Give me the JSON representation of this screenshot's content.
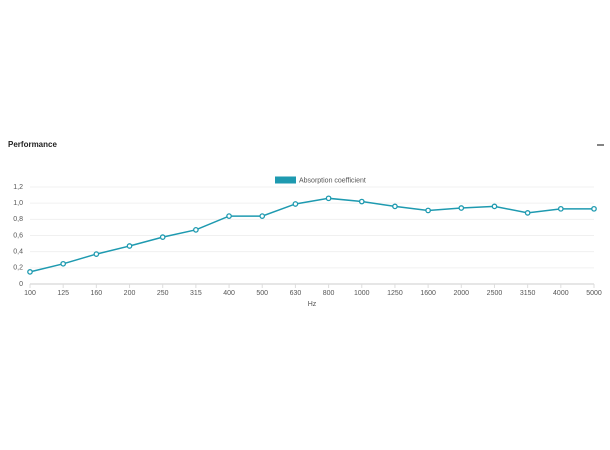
{
  "header": {
    "title": "Performance"
  },
  "chart_data": {
    "type": "line",
    "categories": [
      "100",
      "125",
      "160",
      "200",
      "250",
      "315",
      "400",
      "500",
      "630",
      "800",
      "1000",
      "1250",
      "1600",
      "2000",
      "2500",
      "3150",
      "4000",
      "5000"
    ],
    "series": [
      {
        "name": "Absorption coefficient",
        "color": "#1e9ab0",
        "values": [
          0.15,
          0.25,
          0.37,
          0.47,
          0.58,
          0.67,
          0.84,
          0.84,
          0.99,
          1.06,
          1.02,
          0.96,
          0.91,
          0.94,
          0.96,
          0.88,
          0.93,
          0.93
        ]
      }
    ],
    "xlabel": "Hz",
    "ylim": [
      0,
      1.2
    ],
    "yticks": [
      0,
      {
        "value": 0.2,
        "label": "0,2"
      },
      {
        "value": 0.4,
        "label": "0,4"
      },
      {
        "value": 0.6,
        "label": "0,6"
      },
      {
        "value": 0.8,
        "label": "0,8"
      },
      {
        "value": 1,
        "label": "1,0"
      },
      {
        "value": 1.2,
        "label": "1,2"
      }
    ],
    "grid": true
  }
}
